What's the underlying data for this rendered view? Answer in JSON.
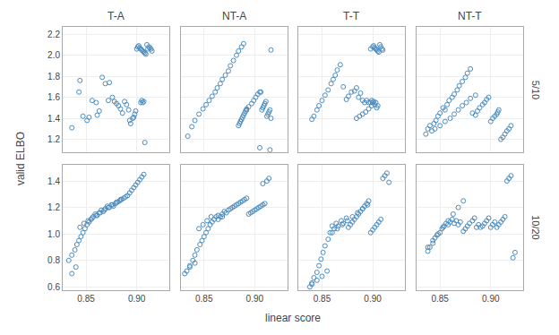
{
  "chart_data": {
    "type": "scatter",
    "xlabel": "linear score",
    "ylabel": "valid ELBO",
    "col_titles": [
      "T-A",
      "NT-A",
      "T-T",
      "NT-T"
    ],
    "row_labels": [
      "5/10",
      "10/20"
    ],
    "color": "#4C8CBF",
    "marker": "circle-open",
    "grid": true,
    "xlim": [
      0.827,
      0.932
    ],
    "xticks": [
      0.85,
      {
        "value": 0.9,
        "label": "0.90"
      }
    ],
    "rows": [
      {
        "ylim": [
          1.08,
          2.27
        ],
        "yticks": [
          1.2,
          1.4,
          1.6,
          1.8,
          {
            "value": 2,
            "label": "2.0"
          },
          2.2
        ],
        "panels": [
          {
            "x": [
              0.836,
              0.843,
              0.844,
              0.847,
              0.851,
              0.853,
              0.856,
              0.86,
              0.861,
              0.863,
              0.866,
              0.869,
              0.872,
              0.873,
              0.876,
              0.878,
              0.88,
              0.882,
              0.884,
              0.886,
              0.888,
              0.89,
              0.892,
              0.893,
              0.894,
              0.896,
              0.897,
              0.898,
              0.899,
              0.9,
              0.901,
              0.902,
              0.903,
              0.904,
              0.905,
              0.906,
              0.907,
              0.908,
              0.909,
              0.91,
              0.911,
              0.912,
              0.913,
              0.914,
              0.915,
              0.904,
              0.905,
              0.906,
              0.907,
              0.908
            ],
            "y": [
              1.31,
              1.65,
              1.76,
              1.42,
              1.38,
              1.41,
              1.57,
              1.55,
              1.43,
              1.47,
              1.79,
              1.73,
              1.57,
              1.74,
              1.6,
              1.56,
              1.54,
              1.52,
              1.49,
              1.45,
              1.56,
              1.53,
              1.48,
              1.38,
              1.35,
              1.4,
              1.41,
              1.44,
              1.47,
              2.06,
              2.08,
              2.09,
              2.07,
              2.06,
              2.05,
              2.04,
              2.03,
              2.02,
              2.01,
              2.1,
              2.06,
              2.08,
              2.07,
              2.06,
              2.04,
              1.55,
              1.57,
              1.55,
              1.56,
              1.17
            ]
          },
          {
            "x": [
              0.834,
              0.838,
              0.841,
              0.845,
              0.849,
              0.852,
              0.855,
              0.858,
              0.861,
              0.863,
              0.866,
              0.868,
              0.871,
              0.874,
              0.876,
              0.879,
              0.882,
              0.884,
              0.887,
              0.889,
              0.892,
              0.894,
              0.897,
              0.899,
              0.901,
              0.903,
              0.905,
              0.906,
              0.907,
              0.908,
              0.909,
              0.91,
              0.911,
              0.912,
              0.913,
              0.914,
              0.915,
              0.916,
              0.916,
              0.884,
              0.885,
              0.886,
              0.887,
              0.888,
              0.889,
              0.89,
              0.891,
              0.892,
              0.915,
              0.905
            ],
            "y": [
              1.23,
              1.32,
              1.38,
              1.44,
              1.49,
              1.53,
              1.57,
              1.61,
              1.65,
              1.69,
              1.73,
              1.77,
              1.81,
              1.85,
              1.9,
              1.95,
              2.0,
              2.04,
              2.08,
              2.11,
              1.48,
              1.51,
              1.54,
              1.57,
              1.6,
              1.63,
              1.65,
              1.65,
              1.48,
              1.5,
              1.52,
              1.54,
              1.56,
              1.42,
              1.44,
              1.46,
              1.48,
              2.05,
              1.4,
              1.33,
              1.35,
              1.37,
              1.39,
              1.41,
              1.43,
              1.45,
              1.47,
              1.49,
              1.1,
              1.12
            ]
          },
          {
            "x": [
              0.84,
              0.842,
              0.845,
              0.847,
              0.85,
              0.853,
              0.856,
              0.859,
              0.861,
              0.863,
              0.865,
              0.868,
              0.871,
              0.874,
              0.876,
              0.879,
              0.882,
              0.884,
              0.886,
              0.888,
              0.89,
              0.892,
              0.894,
              0.896,
              0.898,
              0.9,
              0.901,
              0.902,
              0.903,
              0.904,
              0.905,
              0.906,
              0.907,
              0.908,
              0.909,
              0.91,
              0.898,
              0.899,
              0.9,
              0.901,
              0.902,
              0.903,
              0.904,
              0.905,
              0.884,
              0.887,
              0.89,
              0.893,
              0.896,
              0.899
            ],
            "y": [
              1.39,
              1.42,
              1.48,
              1.52,
              1.57,
              1.62,
              1.67,
              1.73,
              1.77,
              1.81,
              1.86,
              1.91,
              1.7,
              1.58,
              1.61,
              1.65,
              1.66,
              1.69,
              1.6,
              1.64,
              1.57,
              1.55,
              1.57,
              1.55,
              2.06,
              2.08,
              2.09,
              2.07,
              2.06,
              2.05,
              2.04,
              2.03,
              2.1,
              2.08,
              2.06,
              2.05,
              1.55,
              1.57,
              1.55,
              1.56,
              1.53,
              1.55,
              1.5,
              1.52,
              1.4,
              1.42,
              1.44,
              1.46,
              1.49,
              1.52
            ]
          },
          {
            "x": [
              0.836,
              0.838,
              0.84,
              0.842,
              0.844,
              0.846,
              0.848,
              0.85,
              0.853,
              0.855,
              0.857,
              0.859,
              0.862,
              0.864,
              0.867,
              0.869,
              0.872,
              0.875,
              0.877,
              0.88,
              0.882,
              0.885,
              0.887,
              0.889,
              0.892,
              0.894,
              0.896,
              0.898,
              0.9,
              0.902,
              0.904,
              0.906,
              0.907,
              0.908,
              0.91,
              0.912,
              0.914,
              0.916,
              0.918,
              0.92,
              0.845,
              0.85,
              0.855,
              0.86,
              0.864,
              0.868,
              0.872,
              0.876,
              0.88,
              0.885
            ],
            "y": [
              1.25,
              1.3,
              1.33,
              1.28,
              1.35,
              1.38,
              1.42,
              1.45,
              1.5,
              1.48,
              1.53,
              1.57,
              1.6,
              1.63,
              1.67,
              1.71,
              1.75,
              1.79,
              1.83,
              1.87,
              1.45,
              1.43,
              1.47,
              1.5,
              1.53,
              1.55,
              1.58,
              1.6,
              1.37,
              1.4,
              1.42,
              1.44,
              1.46,
              1.48,
              1.2,
              1.22,
              1.25,
              1.28,
              1.3,
              1.33,
              1.3,
              1.33,
              1.37,
              1.4,
              1.44,
              1.48,
              1.52,
              1.55,
              1.59,
              1.62
            ]
          }
        ]
      },
      {
        "ylim": [
          0.575,
          1.52
        ],
        "yticks": [
          0.6,
          0.8,
          {
            "value": 1,
            "label": "1.0"
          },
          1.2,
          1.4
        ],
        "panels": [
          {
            "x": [
              0.833,
              0.836,
              0.839,
              0.841,
              0.843,
              0.845,
              0.847,
              0.849,
              0.851,
              0.853,
              0.855,
              0.857,
              0.859,
              0.861,
              0.863,
              0.865,
              0.867,
              0.869,
              0.871,
              0.873,
              0.875,
              0.877,
              0.879,
              0.881,
              0.883,
              0.885,
              0.887,
              0.889,
              0.891,
              0.893,
              0.895,
              0.897,
              0.899,
              0.901,
              0.903,
              0.905,
              0.907,
              0.836,
              0.84,
              0.844,
              0.848,
              0.852,
              0.856,
              0.86,
              0.864,
              0.868,
              0.872,
              0.876,
              0.88,
              0.884
            ],
            "y": [
              0.8,
              0.84,
              0.88,
              0.92,
              0.95,
              0.98,
              1.01,
              1.04,
              1.07,
              1.09,
              1.11,
              1.13,
              1.15,
              1.14,
              1.16,
              1.18,
              1.17,
              1.19,
              1.21,
              1.2,
              1.22,
              1.21,
              1.23,
              1.24,
              1.25,
              1.26,
              1.27,
              1.28,
              1.29,
              1.31,
              1.33,
              1.35,
              1.37,
              1.39,
              1.41,
              1.43,
              1.45,
              0.7,
              0.75,
              1.05,
              1.08,
              1.1,
              1.12,
              1.14,
              1.16,
              1.18,
              1.2,
              1.22,
              1.24,
              1.26
            ]
          },
          {
            "x": [
              0.833,
              0.836,
              0.839,
              0.841,
              0.843,
              0.846,
              0.848,
              0.85,
              0.852,
              0.854,
              0.856,
              0.858,
              0.86,
              0.862,
              0.864,
              0.866,
              0.868,
              0.87,
              0.872,
              0.874,
              0.876,
              0.878,
              0.88,
              0.882,
              0.884,
              0.886,
              0.888,
              0.89,
              0.892,
              0.894,
              0.896,
              0.898,
              0.9,
              0.902,
              0.904,
              0.906,
              0.908,
              0.831,
              0.836,
              0.841,
              0.845,
              0.849,
              0.853,
              0.857,
              0.908,
              0.91,
              0.912,
              0.914,
              0.864,
              0.868
            ],
            "y": [
              0.72,
              0.76,
              0.8,
              0.84,
              0.88,
              0.92,
              0.95,
              0.98,
              1.01,
              1.04,
              1.07,
              1.09,
              1.11,
              1.13,
              1.14,
              1.13,
              1.15,
              1.17,
              1.16,
              1.18,
              1.19,
              1.2,
              1.21,
              1.22,
              1.23,
              1.24,
              1.25,
              1.26,
              1.27,
              1.15,
              1.16,
              1.17,
              1.18,
              1.19,
              1.2,
              1.21,
              1.38,
              0.7,
              0.75,
              0.78,
              1.04,
              1.07,
              1.1,
              1.13,
              1.22,
              1.23,
              1.4,
              1.42,
              1.11,
              1.13
            ]
          },
          {
            "x": [
              0.838,
              0.84,
              0.842,
              0.845,
              0.847,
              0.849,
              0.851,
              0.853,
              0.856,
              0.858,
              0.86,
              0.862,
              0.864,
              0.866,
              0.869,
              0.871,
              0.874,
              0.876,
              0.878,
              0.88,
              0.882,
              0.884,
              0.886,
              0.888,
              0.89,
              0.892,
              0.894,
              0.896,
              0.898,
              0.9,
              0.902,
              0.904,
              0.906,
              0.908,
              0.91,
              0.912,
              0.914,
              0.916,
              0.84,
              0.845,
              0.85,
              0.855,
              0.86,
              0.865,
              0.87,
              0.875,
              0.88,
              0.885,
              0.89,
              0.895
            ],
            "y": [
              0.6,
              0.63,
              0.67,
              0.71,
              0.76,
              0.81,
              0.86,
              0.91,
              0.96,
              1.01,
              1.06,
              1.04,
              1.08,
              1.06,
              1.1,
              1.08,
              1.12,
              1.05,
              1.07,
              1.09,
              1.11,
              1.13,
              1.15,
              1.17,
              1.19,
              1.21,
              1.23,
              1.25,
              1.01,
              1.03,
              1.05,
              1.07,
              1.09,
              1.11,
              1.42,
              1.44,
              1.46,
              1.39,
              0.62,
              0.65,
              0.68,
              0.72,
              1.01,
              1.04,
              1.07,
              1.1,
              1.13,
              1.16,
              1.19,
              1.22
            ]
          },
          {
            "x": [
              0.838,
              0.84,
              0.843,
              0.845,
              0.847,
              0.85,
              0.852,
              0.854,
              0.856,
              0.858,
              0.86,
              0.862,
              0.864,
              0.866,
              0.868,
              0.87,
              0.873,
              0.875,
              0.877,
              0.879,
              0.882,
              0.884,
              0.886,
              0.888,
              0.89,
              0.892,
              0.894,
              0.896,
              0.898,
              0.9,
              0.902,
              0.904,
              0.906,
              0.908,
              0.91,
              0.912,
              0.914,
              0.916,
              0.918,
              0.92,
              0.922,
              0.924,
              0.838,
              0.843,
              0.848,
              0.853,
              0.858,
              0.863,
              0.868,
              0.873
            ],
            "y": [
              0.87,
              0.9,
              0.93,
              0.97,
              0.99,
              1.01,
              1.04,
              1.06,
              1.08,
              1.07,
              1.09,
              1.11,
              1.08,
              1.1,
              1.07,
              1.09,
              1.02,
              1.04,
              1.06,
              1.08,
              1.1,
              1.12,
              1.05,
              1.07,
              1.05,
              1.06,
              1.08,
              1.1,
              1.12,
              1.05,
              1.07,
              1.09,
              1.05,
              1.07,
              1.09,
              1.11,
              1.13,
              1.4,
              1.42,
              1.44,
              0.82,
              0.86,
              0.9,
              0.95,
              1.0,
              1.05,
              1.1,
              1.15,
              1.2,
              1.25
            ]
          }
        ]
      }
    ]
  }
}
